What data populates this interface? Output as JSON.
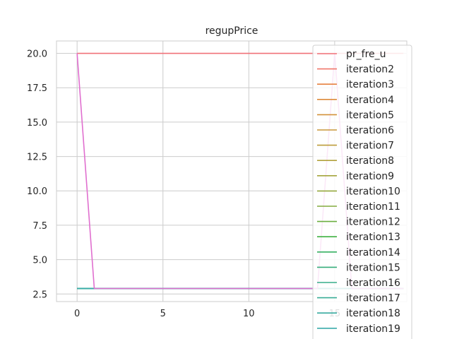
{
  "chart_data": {
    "type": "line",
    "title": "regupPrice",
    "xlabel": "",
    "ylabel": "",
    "xlim": [
      -1.2,
      19.2
    ],
    "ylim": [
      1.95,
      20.9
    ],
    "x_ticks": [
      0,
      5,
      10,
      15
    ],
    "y_ticks": [
      2.5,
      5.0,
      7.5,
      10.0,
      12.5,
      15.0,
      17.5,
      20.0
    ],
    "x_tick_labels": [
      "0",
      "5",
      "10",
      "15"
    ],
    "y_tick_labels": [
      "2.5",
      "5.0",
      "7.5",
      "10.0",
      "12.5",
      "15.0",
      "17.5",
      "20.0"
    ],
    "grid": true,
    "legend_position": "upper-right",
    "x": [
      0,
      1,
      2,
      3,
      4,
      5,
      6,
      7,
      8,
      9,
      10,
      11,
      12,
      13,
      14,
      15,
      16,
      17,
      18,
      19
    ],
    "series": [
      {
        "name": "pr_fre_u",
        "color": "#f07178",
        "values": [
          20,
          20,
          20,
          20,
          20,
          20,
          20,
          20,
          20,
          20,
          20,
          20,
          20,
          20,
          20,
          20,
          20,
          20,
          20,
          20
        ]
      },
      {
        "name": "iteration2",
        "color": "#f0766a",
        "values": [
          2.9,
          2.9,
          2.9,
          2.9,
          2.9,
          2.9,
          2.9,
          2.9,
          2.9,
          2.9,
          2.9,
          2.9,
          2.9,
          2.9,
          2.9,
          2.9,
          2.9,
          2.9,
          2.9,
          2.9
        ]
      },
      {
        "name": "iteration3",
        "color": "#e6813f",
        "values": [
          2.9,
          2.9,
          2.9,
          2.9,
          2.9,
          2.9,
          2.9,
          2.9,
          2.9,
          2.9,
          2.9,
          2.9,
          2.9,
          2.9,
          2.9,
          2.9,
          2.9,
          2.9,
          2.9,
          2.9
        ]
      },
      {
        "name": "iteration4",
        "color": "#dd8a3a",
        "values": [
          2.9,
          2.9,
          2.9,
          2.9,
          2.9,
          2.9,
          2.9,
          2.9,
          2.9,
          2.9,
          2.9,
          2.9,
          2.9,
          2.9,
          2.9,
          2.9,
          2.9,
          2.9,
          2.9,
          2.9
        ]
      },
      {
        "name": "iteration5",
        "color": "#d3913a",
        "values": [
          2.9,
          2.9,
          2.9,
          2.9,
          2.9,
          2.9,
          2.9,
          2.9,
          2.9,
          2.9,
          2.9,
          2.9,
          2.9,
          2.9,
          2.9,
          2.9,
          2.9,
          2.9,
          2.9,
          2.9
        ]
      },
      {
        "name": "iteration6",
        "color": "#c9973a",
        "values": [
          2.9,
          2.9,
          2.9,
          2.9,
          2.9,
          2.9,
          2.9,
          2.9,
          2.9,
          2.9,
          2.9,
          2.9,
          2.9,
          2.9,
          2.9,
          2.9,
          2.9,
          2.9,
          2.9,
          2.9
        ]
      },
      {
        "name": "iteration7",
        "color": "#bd9c3a",
        "values": [
          2.9,
          2.9,
          2.9,
          2.9,
          2.9,
          2.9,
          2.9,
          2.9,
          2.9,
          2.9,
          2.9,
          2.9,
          2.9,
          2.9,
          2.9,
          2.9,
          2.9,
          2.9,
          2.9,
          2.9
        ]
      },
      {
        "name": "iteration8",
        "color": "#b1a03b",
        "values": [
          2.9,
          2.9,
          2.9,
          2.9,
          2.9,
          2.9,
          2.9,
          2.9,
          2.9,
          2.9,
          2.9,
          2.9,
          2.9,
          2.9,
          2.9,
          2.9,
          2.9,
          2.9,
          2.9,
          2.9
        ]
      },
      {
        "name": "iteration9",
        "color": "#a4a43c",
        "values": [
          2.9,
          2.9,
          2.9,
          2.9,
          2.9,
          2.9,
          2.9,
          2.9,
          2.9,
          2.9,
          2.9,
          2.9,
          2.9,
          2.9,
          2.9,
          2.9,
          2.9,
          2.9,
          2.9,
          2.9
        ]
      },
      {
        "name": "iteration10",
        "color": "#95a83d",
        "values": [
          2.9,
          2.9,
          2.9,
          2.9,
          2.9,
          2.9,
          2.9,
          2.9,
          2.9,
          2.9,
          2.9,
          2.9,
          2.9,
          2.9,
          2.9,
          2.9,
          2.9,
          2.9,
          2.9,
          2.9
        ]
      },
      {
        "name": "iteration11",
        "color": "#83ab3e",
        "values": [
          2.9,
          2.9,
          2.9,
          2.9,
          2.9,
          2.9,
          2.9,
          2.9,
          2.9,
          2.9,
          2.9,
          2.9,
          2.9,
          2.9,
          2.9,
          2.9,
          2.9,
          2.9,
          2.9,
          2.9
        ]
      },
      {
        "name": "iteration12",
        "color": "#6aae3f",
        "values": [
          2.9,
          2.9,
          2.9,
          2.9,
          2.9,
          2.9,
          2.9,
          2.9,
          2.9,
          2.9,
          2.9,
          2.9,
          2.9,
          2.9,
          2.9,
          2.9,
          2.9,
          2.9,
          2.9,
          2.9
        ]
      },
      {
        "name": "iteration13",
        "color": "#3fb041",
        "values": [
          2.9,
          2.9,
          2.9,
          2.9,
          2.9,
          2.9,
          2.9,
          2.9,
          2.9,
          2.9,
          2.9,
          2.9,
          2.9,
          2.9,
          2.9,
          2.9,
          2.9,
          2.9,
          2.9,
          2.9
        ]
      },
      {
        "name": "iteration14",
        "color": "#36b062",
        "values": [
          2.9,
          2.9,
          2.9,
          2.9,
          2.9,
          2.9,
          2.9,
          2.9,
          2.9,
          2.9,
          2.9,
          2.9,
          2.9,
          2.9,
          2.9,
          2.9,
          2.9,
          2.9,
          2.9,
          2.9
        ]
      },
      {
        "name": "iteration15",
        "color": "#36ae7a",
        "values": [
          2.9,
          2.9,
          2.9,
          2.9,
          2.9,
          2.9,
          2.9,
          2.9,
          2.9,
          2.9,
          2.9,
          2.9,
          2.9,
          2.9,
          2.9,
          2.9,
          2.9,
          2.9,
          2.9,
          2.9
        ]
      },
      {
        "name": "iteration16",
        "color": "#37ad8a",
        "values": [
          2.9,
          2.9,
          2.9,
          2.9,
          2.9,
          2.9,
          2.9,
          2.9,
          2.9,
          2.9,
          2.9,
          2.9,
          2.9,
          2.9,
          2.9,
          2.9,
          2.9,
          2.9,
          2.9,
          2.9
        ]
      },
      {
        "name": "iteration17",
        "color": "#38ac96",
        "values": [
          2.9,
          2.9,
          2.9,
          2.9,
          2.9,
          2.9,
          2.9,
          2.9,
          2.9,
          2.9,
          2.9,
          2.9,
          2.9,
          2.9,
          2.9,
          2.9,
          2.9,
          2.9,
          2.9,
          2.9
        ]
      },
      {
        "name": "iteration18",
        "color": "#38aba0",
        "values": [
          2.9,
          2.9,
          2.9,
          2.9,
          2.9,
          2.9,
          2.9,
          2.9,
          2.9,
          2.9,
          2.9,
          2.9,
          2.9,
          2.9,
          2.9,
          2.9,
          2.9,
          2.9,
          2.9,
          2.9
        ]
      },
      {
        "name": "iteration19",
        "color": "#39abaa",
        "values": [
          2.9,
          2.9,
          2.9,
          2.9,
          2.9,
          2.9,
          2.9,
          2.9,
          2.9,
          2.9,
          2.9,
          2.9,
          2.9,
          2.9,
          2.9,
          2.9,
          2.9,
          2.9,
          2.9,
          2.9
        ]
      },
      {
        "name": "",
        "color": "#e06fcf",
        "values": [
          20,
          2.9,
          2.9,
          2.9,
          2.9,
          2.9,
          2.9,
          2.9,
          2.9,
          2.9,
          2.9,
          2.9,
          2.9,
          2.9,
          2.9,
          20,
          2.9,
          2.9,
          2.9,
          2.9
        ]
      }
    ]
  }
}
